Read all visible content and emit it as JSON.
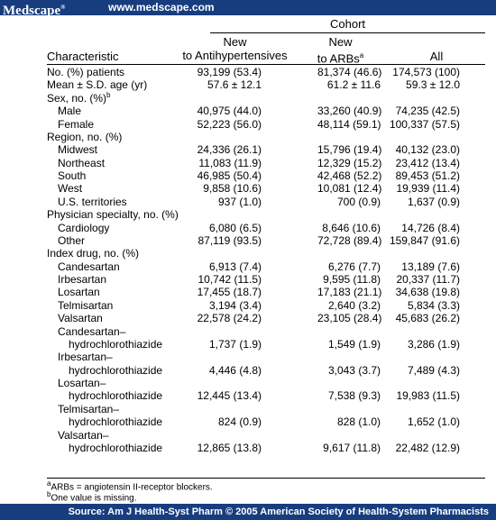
{
  "header": {
    "logo": "Medscape",
    "logo_mark": "®",
    "url": "www.medscape.com"
  },
  "table": {
    "group_header": "Cohort",
    "col_characteristic": "Characteristic",
    "col_new_line1": "New",
    "col_new_line2": "to Antihypertensives",
    "col_arb_line1": "New",
    "col_arb_line2": "to ARBs",
    "col_arb_sup": "a",
    "col_all": "All",
    "rows": [
      {
        "label": "No. (%) patients",
        "indent": 0,
        "c1": "93,199 (53.4)",
        "c2": "81,374 (46.6)",
        "c3": "174,573 (100)"
      },
      {
        "label": "Mean ± S.D. age (yr)",
        "indent": 0,
        "c1": "57.6 ± 12.1",
        "c2": "61.2 ± 11.6",
        "c3": "59.3 ± 12.0"
      },
      {
        "label": "Sex, no. (%)",
        "sup": "b",
        "indent": 0,
        "c1": "",
        "c2": "",
        "c3": ""
      },
      {
        "label": "Male",
        "indent": 1,
        "c1": "40,975 (44.0)",
        "c2": "33,260 (40.9)",
        "c3": "74,235 (42.5)"
      },
      {
        "label": "Female",
        "indent": 1,
        "c1": "52,223 (56.0)",
        "c2": "48,114 (59.1)",
        "c3": "100,337 (57.5)"
      },
      {
        "label": "Region, no. (%)",
        "indent": 0,
        "c1": "",
        "c2": "",
        "c3": ""
      },
      {
        "label": "Midwest",
        "indent": 1,
        "c1": "24,336 (26.1)",
        "c2": "15,796 (19.4)",
        "c3": "40,132 (23.0)"
      },
      {
        "label": "Northeast",
        "indent": 1,
        "c1": "11,083 (11.9)",
        "c2": "12,329 (15.2)",
        "c3": "23,412 (13.4)"
      },
      {
        "label": "South",
        "indent": 1,
        "c1": "46,985 (50.4)",
        "c2": "42,468 (52.2)",
        "c3": "89,453 (51.2)"
      },
      {
        "label": "West",
        "indent": 1,
        "c1": "9,858 (10.6)",
        "c2": "10,081 (12.4)",
        "c3": "19,939 (11.4)"
      },
      {
        "label": "U.S. territories",
        "indent": 1,
        "c1": "937 (1.0)",
        "c2": "700 (0.9)",
        "c3": "1,637 (0.9)"
      },
      {
        "label": "Physician specialty, no. (%)",
        "indent": 0,
        "c1": "",
        "c2": "",
        "c3": ""
      },
      {
        "label": "Cardiology",
        "indent": 1,
        "c1": "6,080 (6.5)",
        "c2": "8,646 (10.6)",
        "c3": "14,726 (8.4)"
      },
      {
        "label": "Other",
        "indent": 1,
        "c1": "87,119 (93.5)",
        "c2": "72,728 (89.4)",
        "c3": "159,847 (91.6)"
      },
      {
        "label": "Index drug, no. (%)",
        "indent": 0,
        "c1": "",
        "c2": "",
        "c3": ""
      },
      {
        "label": "Candesartan",
        "indent": 1,
        "c1": "6,913 (7.4)",
        "c2": "6,276 (7.7)",
        "c3": "13,189 (7.6)"
      },
      {
        "label": "Irbesartan",
        "indent": 1,
        "c1": "10,742 (11.5)",
        "c2": "9,595 (11.8)",
        "c3": "20,337 (11.7)"
      },
      {
        "label": "Losartan",
        "indent": 1,
        "c1": "17,455 (18.7)",
        "c2": "17,183 (21.1)",
        "c3": "34,638 (19.8)"
      },
      {
        "label": "Telmisartan",
        "indent": 1,
        "c1": "3,194 (3.4)",
        "c2": "2,640 (3.2)",
        "c3": "5,834 (3.3)"
      },
      {
        "label": "Valsartan",
        "indent": 1,
        "c1": "22,578 (24.2)",
        "c2": "23,105 (28.4)",
        "c3": "45,683 (26.2)"
      },
      {
        "label": "Candesartan–",
        "indent": 1,
        "c1": "",
        "c2": "",
        "c3": ""
      },
      {
        "label": "hydrochlorothiazide",
        "indent": 2,
        "c1": "1,737 (1.9)",
        "c2": "1,549 (1.9)",
        "c3": "3,286 (1.9)"
      },
      {
        "label": "Irbesartan–",
        "indent": 1,
        "c1": "",
        "c2": "",
        "c3": ""
      },
      {
        "label": "hydrochlorothiazide",
        "indent": 2,
        "c1": "4,446 (4.8)",
        "c2": "3,043 (3.7)",
        "c3": "7,489 (4.3)"
      },
      {
        "label": "Losartan–",
        "indent": 1,
        "c1": "",
        "c2": "",
        "c3": ""
      },
      {
        "label": "hydrochlorothiazide",
        "indent": 2,
        "c1": "12,445 (13.4)",
        "c2": "7,538 (9.3)",
        "c3": "19,983 (11.5)"
      },
      {
        "label": "Telmisartan–",
        "indent": 1,
        "c1": "",
        "c2": "",
        "c3": ""
      },
      {
        "label": "hydrochlorothiazide",
        "indent": 2,
        "c1": "824 (0.9)",
        "c2": "828 (1.0)",
        "c3": "1,652 (1.0)"
      },
      {
        "label": "Valsartan–",
        "indent": 1,
        "c1": "",
        "c2": "",
        "c3": ""
      },
      {
        "label": "hydrochlorothiazide",
        "indent": 2,
        "c1": "12,865 (13.8)",
        "c2": "9,617 (11.8)",
        "c3": "22,482 (12.9)"
      }
    ]
  },
  "footnotes": {
    "a_mark": "a",
    "a_text": "ARBs = angiotensin II-receptor blockers.",
    "b_mark": "b",
    "b_text": "One value is missing."
  },
  "footer": {
    "source": "Source: Am J Health-Syst Pharm © 2005 American Society of Health-System Pharmacists"
  }
}
